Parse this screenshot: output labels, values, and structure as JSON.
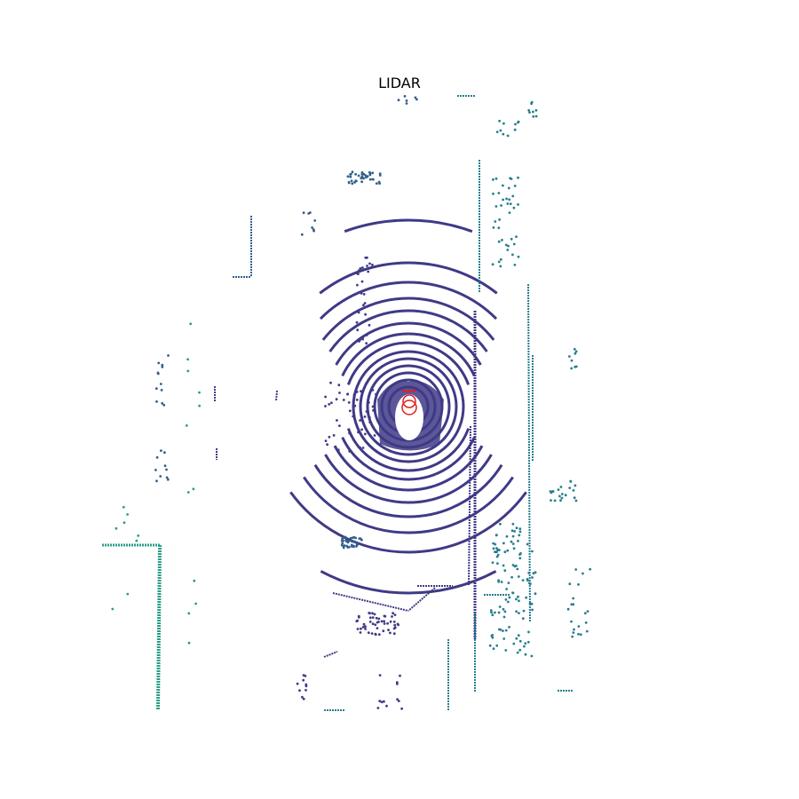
{
  "title": "LIDAR",
  "colors": {
    "near": "#3f3a86",
    "mid": "#345f8c",
    "far": "#277e8e",
    "farthest": "#2a9d86",
    "ego": "#e01f1f"
  }
}
